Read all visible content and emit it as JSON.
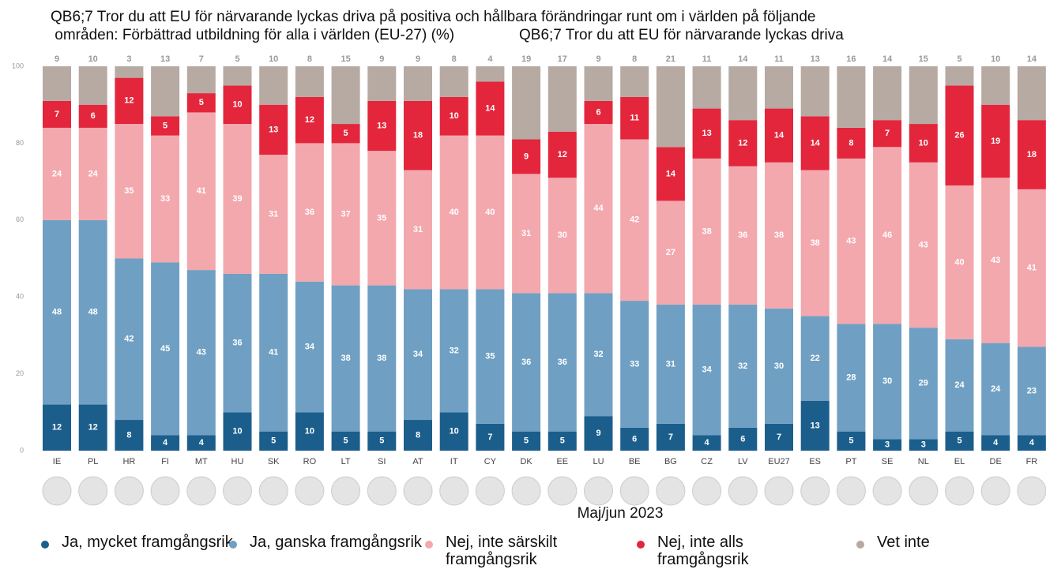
{
  "chart_data": {
    "type": "stacked_bar",
    "title": "QB6;7 Tror du att EU för närvarande lyckas driva på positiva och hållbara förändringar runt om i världen på följande områden: Förbättrad utbildning för alla i världen (EU-27) (%)",
    "title_overlay": "QB6;7 Tror du att EU för närvarande lyckas driva",
    "xlabel": "Maj/jun 2023",
    "categories": [
      "IE",
      "PL",
      "HR",
      "FI",
      "MT",
      "HU",
      "SK",
      "RO",
      "LT",
      "SI",
      "AT",
      "IT",
      "CY",
      "DK",
      "EE",
      "LU",
      "BE",
      "BG",
      "CZ",
      "LV",
      "EU27",
      "ES",
      "PT",
      "SE",
      "NL",
      "EL",
      "DE",
      "FR"
    ],
    "series": [
      {
        "name": "Ja, mycket framgångsrik",
        "color": "#1b5e8c",
        "values": [
          12,
          12,
          8,
          4,
          4,
          10,
          5,
          10,
          5,
          5,
          8,
          10,
          7,
          5,
          5,
          9,
          6,
          7,
          4,
          6,
          7,
          13,
          5,
          3,
          3,
          5,
          4,
          4
        ]
      },
      {
        "name": "Ja, ganska framgångsrik",
        "color": "#6fa0c3",
        "values": [
          48,
          48,
          42,
          45,
          43,
          36,
          41,
          34,
          38,
          38,
          34,
          32,
          35,
          36,
          36,
          32,
          33,
          31,
          34,
          32,
          30,
          22,
          28,
          30,
          29,
          24,
          24,
          23
        ]
      },
      {
        "name": "Nej, inte särskilt framgångsrik",
        "color": "#f3a8ae",
        "values": [
          24,
          24,
          35,
          33,
          41,
          39,
          31,
          36,
          37,
          35,
          31,
          40,
          40,
          31,
          30,
          44,
          42,
          27,
          38,
          36,
          38,
          38,
          43,
          46,
          43,
          40,
          43,
          41
        ]
      },
      {
        "name": "Nej, inte alls framgångsrik",
        "color": "#e3263c",
        "values": [
          7,
          6,
          12,
          5,
          5,
          10,
          13,
          12,
          5,
          13,
          18,
          10,
          14,
          9,
          12,
          6,
          11,
          14,
          13,
          12,
          14,
          14,
          8,
          7,
          10,
          26,
          19,
          18
        ]
      },
      {
        "name": "Vet inte",
        "color": "#b6aaa3",
        "values": [
          9,
          10,
          3,
          13,
          7,
          5,
          10,
          8,
          15,
          9,
          9,
          8,
          4,
          19,
          17,
          9,
          8,
          21,
          11,
          14,
          11,
          13,
          16,
          14,
          15,
          5,
          10,
          14
        ]
      }
    ],
    "ylim": [
      0,
      100
    ],
    "yticks": [
      0,
      20,
      40,
      60,
      80,
      100
    ]
  }
}
